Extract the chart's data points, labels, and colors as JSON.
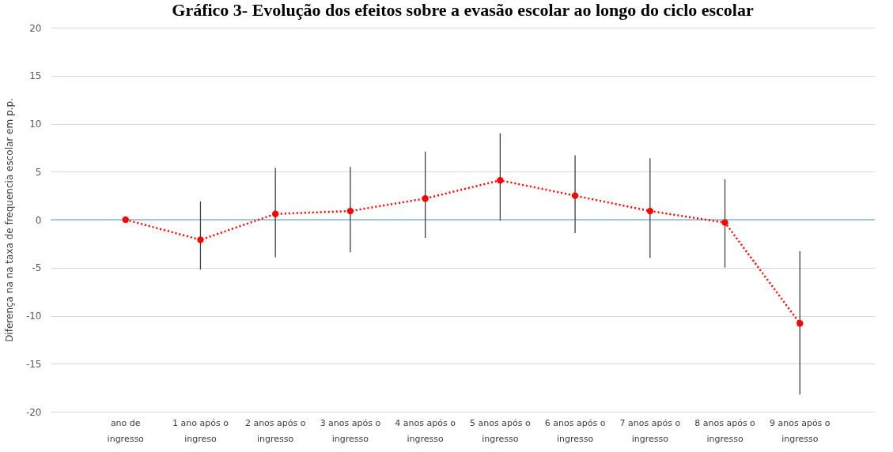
{
  "chart_data": {
    "type": "line",
    "title": "Gráfico 3- Evolução dos efeitos sobre a evasão escolar ao longo do ciclo escolar",
    "ylabel": "Diferença na na taxa de frequencia escolar em p.p.",
    "categories": [
      "ano de ingresso",
      "1 ano após o ingreso",
      "2 anos após o ingresso",
      "3 anos após o ingresso",
      "4 anos após o ingresso",
      "5 anos após o ingresso",
      "6 anos após o ingresso",
      "7 anos após o ingresso",
      "8 anos após o ingresso",
      "9 anos após o ingresso"
    ],
    "series": [
      {
        "color": "#ff0000",
        "values": [
          0,
          -2.1,
          0.6,
          0.9,
          2.2,
          4.1,
          2.5,
          0.9,
          -0.3,
          -10.8
        ],
        "errors": [
          null,
          [
            -5.2,
            1.9
          ],
          [
            -3.9,
            5.4
          ],
          [
            -3.4,
            5.5
          ],
          [
            -1.9,
            7.1
          ],
          [
            -0.1,
            9.0
          ],
          [
            -1.4,
            6.7
          ],
          [
            -4.0,
            6.4
          ],
          [
            -5.0,
            4.2
          ],
          [
            -18.2,
            -3.3
          ]
        ]
      }
    ],
    "ylim": [
      -20,
      20
    ],
    "yticks": [
      -20,
      -15,
      -10,
      -5,
      0,
      5,
      10,
      15,
      20
    ],
    "grid": "y",
    "marker": "circle",
    "line_style": "dotted",
    "ref_lines": [
      {
        "axis": "y",
        "value": 0,
        "color": "#5b9bd5"
      }
    ]
  }
}
